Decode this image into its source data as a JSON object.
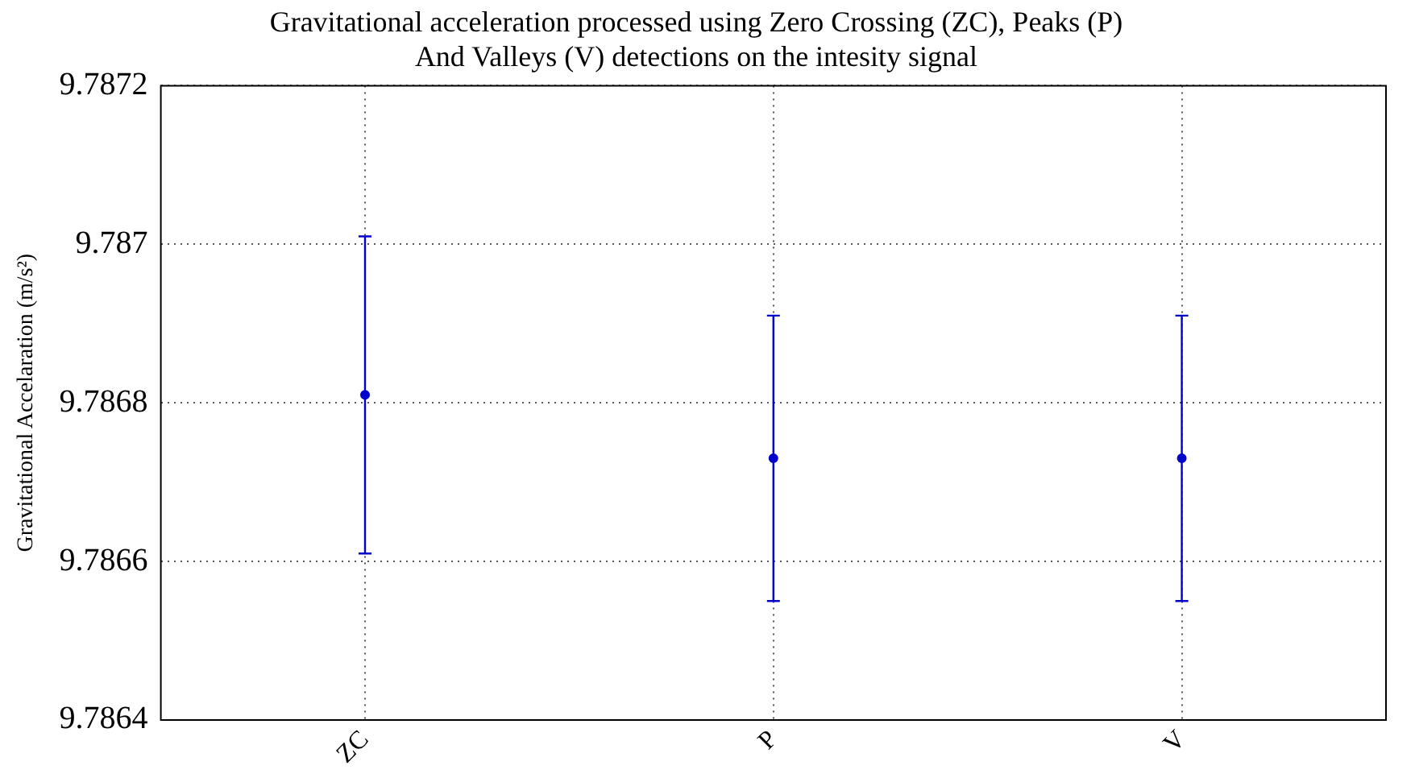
{
  "chart_data": {
    "type": "scatter",
    "title": "Gravitational acceleration processed using Zero Crossing (ZC), Peaks (P) And Valleys (V) detections on the intesity signal",
    "ylabel": "Gravitational Accelaration (m/s²)",
    "categories": [
      "ZC",
      "P",
      "V"
    ],
    "series": [
      {
        "color": "#0000cc",
        "values": [
          9.78681,
          9.78673,
          9.78673
        ],
        "errors": [
          [
            9.78661,
            9.78701
          ],
          [
            9.78655,
            9.78691
          ],
          [
            9.78655,
            9.78691
          ]
        ]
      }
    ],
    "ylim": [
      9.7864,
      9.7872
    ],
    "yticks": [
      9.7864,
      9.7866,
      9.7868,
      9.787,
      9.7872
    ],
    "grid": true,
    "marker": "circle",
    "legend": false
  }
}
